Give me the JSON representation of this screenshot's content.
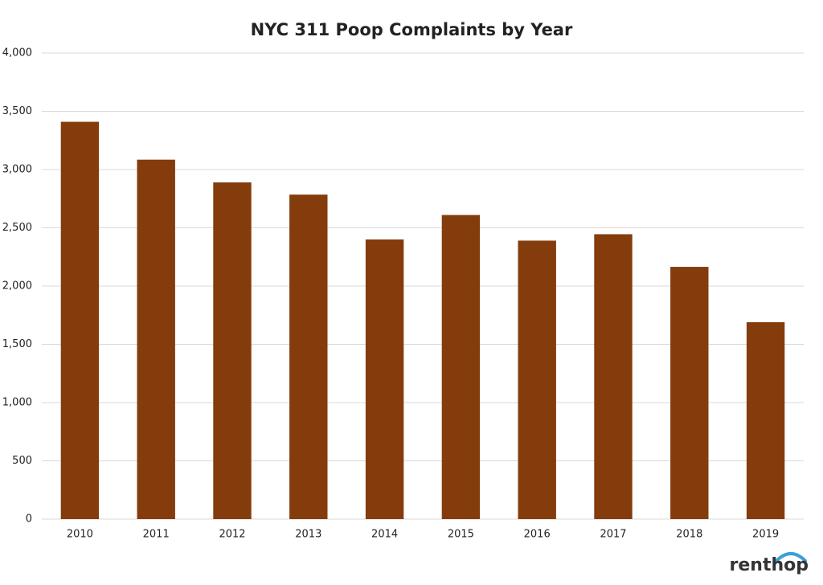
{
  "chart_data": {
    "type": "bar",
    "title": "NYC 311 Poop Complaints by Year",
    "categories": [
      "2010",
      "2011",
      "2012",
      "2013",
      "2014",
      "2015",
      "2016",
      "2017",
      "2018",
      "2019"
    ],
    "values": [
      3410,
      3085,
      2890,
      2785,
      2400,
      2610,
      2390,
      2445,
      2165,
      1690
    ],
    "color": "#843c0c",
    "ylim": [
      0,
      4000
    ],
    "yticks": [
      0,
      500,
      {
        "value": 1000,
        "label": "1,000"
      },
      {
        "value": 1500,
        "label": "1,500"
      },
      {
        "value": 2000,
        "label": "2,000"
      },
      {
        "value": 2500,
        "label": "2,500"
      },
      {
        "value": 3000,
        "label": "3,000"
      },
      {
        "value": 3500,
        "label": "3,500"
      },
      {
        "value": 4000,
        "label": "4,000"
      }
    ],
    "grid": true,
    "brand": "renthop"
  }
}
